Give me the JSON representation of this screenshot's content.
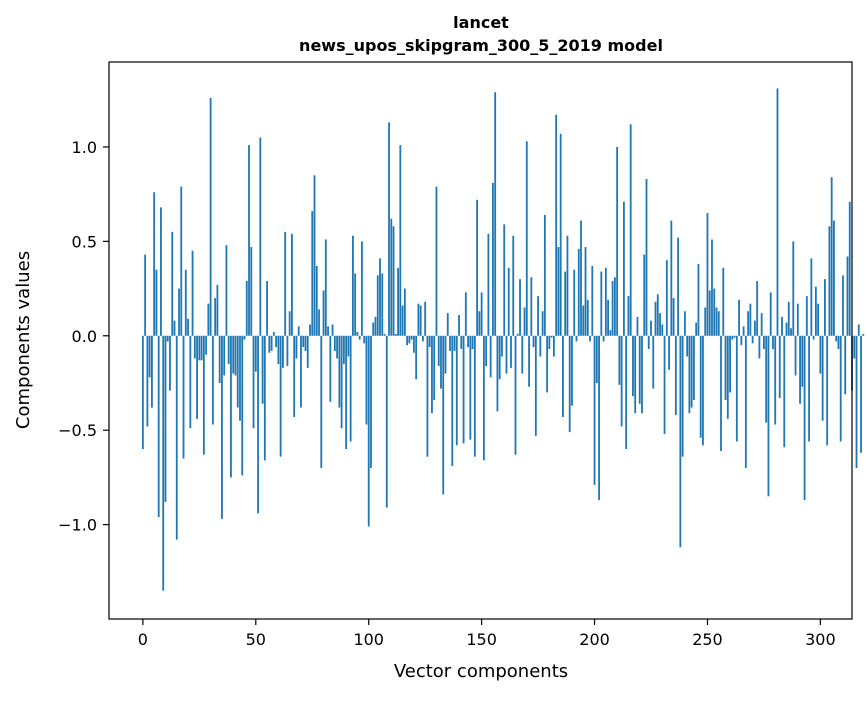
{
  "chart_data": {
    "type": "bar",
    "title": "lancet",
    "subtitle": "news_upos_skipgram_300_5_2019 model",
    "xlabel": "Vector components",
    "ylabel": "Components values",
    "xlim": [
      -15,
      314
    ],
    "ylim": [
      -1.5,
      1.45
    ],
    "xticks": [
      0,
      50,
      100,
      150,
      200,
      250,
      300
    ],
    "xtick_labels": [
      "0",
      "50",
      "100",
      "150",
      "200",
      "250",
      "300"
    ],
    "yticks": [
      -1.0,
      -0.5,
      0.0,
      0.5,
      1.0
    ],
    "ytick_labels": [
      "−1.0",
      "−0.5",
      "0.0",
      "0.5",
      "1.0"
    ],
    "grid": false,
    "bar_color": "#1f77b4",
    "x_start": 0,
    "values": [
      -0.6,
      0.43,
      -0.48,
      -0.22,
      -0.38,
      0.76,
      0.35,
      -0.96,
      0.68,
      -1.35,
      -0.88,
      -0.03,
      -0.29,
      0.55,
      0.08,
      -1.08,
      0.25,
      0.79,
      -0.65,
      0.35,
      0.09,
      -0.49,
      0.45,
      -0.12,
      -0.44,
      -0.13,
      -0.13,
      -0.63,
      -0.1,
      0.17,
      1.26,
      -0.47,
      0.2,
      0.27,
      -0.25,
      -0.97,
      -0.21,
      0.48,
      -0.15,
      -0.75,
      -0.2,
      -0.21,
      -0.38,
      -0.45,
      -0.74,
      -0.02,
      0.29,
      1.01,
      0.47,
      -0.49,
      -0.19,
      -0.94,
      1.05,
      -0.36,
      -0.66,
      0.29,
      -0.09,
      -0.08,
      0.02,
      -0.06,
      -0.15,
      -0.64,
      -0.17,
      0.55,
      -0.16,
      0.13,
      0.54,
      -0.43,
      -0.12,
      0.05,
      -0.38,
      -0.06,
      -0.08,
      -0.17,
      0.06,
      0.66,
      0.85,
      0.37,
      0.14,
      -0.7,
      0.24,
      0.51,
      0.05,
      -0.35,
      0.06,
      -0.08,
      -0.12,
      -0.38,
      -0.49,
      -0.15,
      -0.6,
      -0.11,
      -0.56,
      0.53,
      0.33,
      0.02,
      -0.02,
      0.5,
      -0.04,
      -0.47,
      -1.01,
      -0.7,
      0.07,
      0.1,
      0.32,
      0.41,
      0.33,
      0.01,
      -0.91,
      1.13,
      0.62,
      0.58,
      0.01,
      0.36,
      1.01,
      0.16,
      0.25,
      -0.05,
      -0.04,
      -0.02,
      -0.09,
      -0.23,
      0.17,
      0.16,
      -0.03,
      0.18,
      -0.64,
      -0.06,
      -0.41,
      -0.34,
      0.79,
      -0.16,
      -0.28,
      -0.84,
      -0.2,
      0.12,
      -0.08,
      -0.69,
      -0.08,
      -0.58,
      0.11,
      -0.07,
      -0.57,
      0.23,
      -0.06,
      -0.55,
      -0.07,
      -0.64,
      0.72,
      0.13,
      0.23,
      -0.66,
      -0.16,
      0.54,
      -0.22,
      0.81,
      1.29,
      -0.4,
      -0.23,
      -0.11,
      0.59,
      -0.2,
      0.36,
      -0.17,
      0.53,
      -0.63,
      0.01,
      0.3,
      -0.2,
      0.15,
      1.03,
      -0.27,
      0.31,
      -0.06,
      -0.53,
      0.21,
      -0.11,
      0.13,
      0.64,
      -0.3,
      -0.07,
      -0.01,
      -0.11,
      1.17,
      0.47,
      1.07,
      -0.43,
      0.34,
      0.53,
      -0.51,
      -0.37,
      0.35,
      -0.03,
      0.46,
      0.61,
      0.16,
      0.47,
      0.19,
      -0.03,
      0.37,
      -0.79,
      -0.25,
      -0.87,
      0.34,
      -0.03,
      0.36,
      0.19,
      0.03,
      0.29,
      0.31,
      1.0,
      -0.26,
      -0.48,
      0.71,
      -0.6,
      0.21,
      1.12,
      -0.32,
      -0.41,
      0.1,
      -0.36,
      -0.41,
      0.43,
      0.83,
      -0.07,
      0.08,
      -0.28,
      0.18,
      0.22,
      0.12,
      0.06,
      -0.52,
      0.4,
      -0.18,
      0.61,
      0.2,
      -0.42,
      0.52,
      -1.12,
      -0.64,
      0.13,
      -0.11,
      -0.41,
      -0.38,
      -0.34,
      0.07,
      0.38,
      -0.54,
      -0.58,
      0.15,
      0.65,
      0.24,
      0.51,
      0.25,
      0.15,
      0.13,
      -0.61,
      0.36,
      -0.34,
      -0.44,
      -0.3,
      -0.02,
      -0.01,
      -0.56,
      0.19,
      -0.05,
      0.05,
      -0.7,
      0.13,
      0.17,
      -0.04,
      0.08,
      0.29,
      -0.12,
      0.12,
      -0.07,
      -0.46,
      -0.85,
      0.23,
      -0.07,
      -0.47,
      1.31,
      -0.33,
      0.1,
      -0.59,
      0.07,
      0.18,
      0.04,
      0.5,
      -0.21,
      0.17,
      -0.36,
      -0.27,
      -0.87,
      0.21,
      -0.56,
      0.41,
      -0.02,
      0.26,
      0.17,
      -0.2,
      -0.45,
      0.3,
      -0.58,
      0.58,
      0.84,
      0.61,
      -0.03,
      -0.07,
      -0.56,
      0.32,
      -0.31,
      0.42,
      0.71,
      -0.29,
      -0.12,
      -0.7,
      0.06,
      -0.62,
      0.01
    ]
  }
}
